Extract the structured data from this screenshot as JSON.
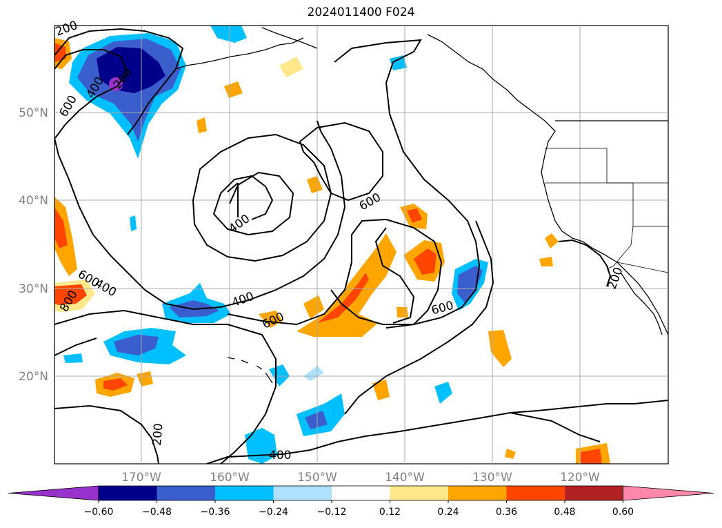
{
  "title": "2024011400 F024",
  "lat_labels": [
    "50°N",
    "40°N",
    "30°N",
    "20°N"
  ],
  "lon_labels": [
    "170°W",
    "160°W",
    "150°W",
    "140°W",
    "130°W",
    "120°W"
  ],
  "colorbar": {
    "ticks": [
      "−0.60",
      "−0.48",
      "−0.36",
      "−0.24",
      "−0.12",
      "0.12",
      "0.24",
      "0.36",
      "0.48",
      "0.60"
    ],
    "colors": [
      "#9932cc",
      "#00008b",
      "#3a5fcd",
      "#00bfff",
      "#b0e2ff",
      "#ffffff",
      "#ffe88c",
      "#ffa500",
      "#ff4500",
      "#b22222",
      "#ff88aa"
    ]
  },
  "contour_labels": [
    "200",
    "200",
    "200",
    "200",
    "400",
    "400",
    "400",
    "400",
    "400",
    "600",
    "600",
    "600",
    "600",
    "600",
    "600",
    "800",
    "800"
  ],
  "colors": {
    "grid": "#aaaaaa",
    "coast": "#000000",
    "contour": "#000000"
  }
}
